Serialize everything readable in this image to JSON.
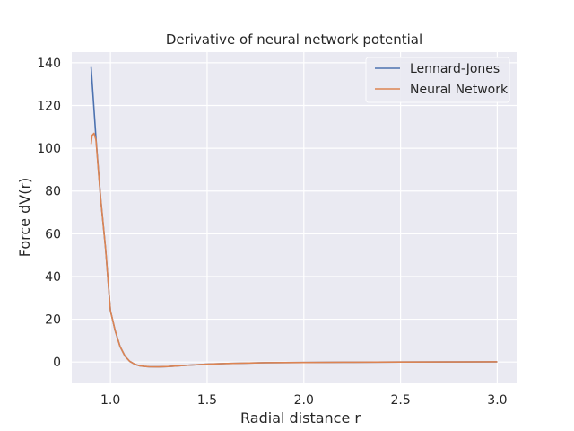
{
  "chart_data": {
    "type": "line",
    "title": "Derivative of neural network potential",
    "xlabel": "Radial distance r",
    "ylabel": "Force dV(r)",
    "xlim": [
      0.8,
      3.1
    ],
    "ylim": [
      -10,
      145
    ],
    "xticks": [
      1.0,
      1.5,
      2.0,
      2.5,
      3.0
    ],
    "xtick_labels": [
      "1.0",
      "1.5",
      "2.0",
      "2.5",
      "3.0"
    ],
    "yticks": [
      0,
      20,
      40,
      60,
      80,
      100,
      120,
      140
    ],
    "ytick_labels": [
      "0",
      "20",
      "40",
      "60",
      "80",
      "100",
      "120",
      "140"
    ],
    "grid": true,
    "legend_position": "top-right",
    "background": "#eaeaf2",
    "series": [
      {
        "name": "Lennard-Jones",
        "color": "#4c72b0",
        "x": [
          0.9,
          0.925,
          0.95,
          0.975,
          1.0,
          1.025,
          1.05,
          1.075,
          1.1,
          1.125,
          1.15,
          1.175,
          1.2,
          1.25,
          1.3,
          1.4,
          1.5,
          1.6,
          1.8,
          2.0,
          2.25,
          2.5,
          2.75,
          3.0
        ],
        "y": [
          138,
          105,
          76,
          53,
          24,
          14.5,
          7.2,
          2.8,
          0.3,
          -1.0,
          -1.75,
          -2.05,
          -2.2,
          -2.25,
          -2.1,
          -1.5,
          -1.0,
          -0.7,
          -0.3,
          -0.2,
          -0.1,
          0.0,
          0.05,
          0.1
        ]
      },
      {
        "name": "Neural Network",
        "color": "#dd8452",
        "x": [
          0.9,
          0.905,
          0.915,
          0.925,
          0.95,
          0.975,
          1.0,
          1.025,
          1.05,
          1.075,
          1.1,
          1.125,
          1.15,
          1.175,
          1.2,
          1.25,
          1.3,
          1.4,
          1.5,
          1.6,
          1.8,
          2.0,
          2.25,
          2.5,
          2.75,
          3.0
        ],
        "y": [
          102,
          106,
          107,
          104,
          76,
          53,
          24,
          14.5,
          7.2,
          2.8,
          0.3,
          -1.0,
          -1.75,
          -2.05,
          -2.2,
          -2.25,
          -2.1,
          -1.5,
          -1.0,
          -0.7,
          -0.3,
          -0.2,
          -0.1,
          0.0,
          0.05,
          0.1
        ]
      }
    ]
  }
}
